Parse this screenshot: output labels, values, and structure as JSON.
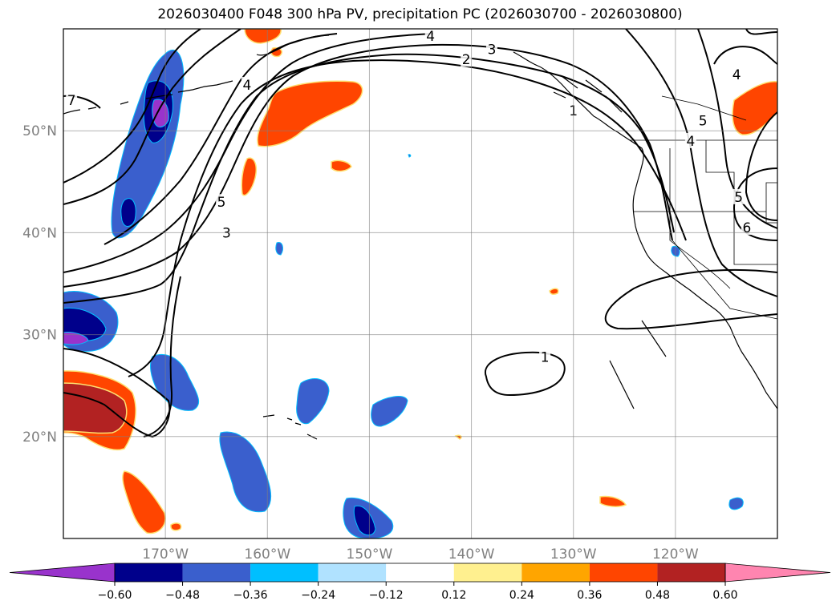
{
  "title": "2026030400 F048 300 hPa PV, precipitation PC (2026030700 - 2026030800)",
  "map": {
    "lat_labels": [
      "50°N",
      "40°N",
      "30°N",
      "20°N"
    ],
    "lat_values": [
      50,
      40,
      30,
      20
    ],
    "lon_labels": [
      "170°W",
      "160°W",
      "150°W",
      "140°W",
      "130°W",
      "120°W"
    ],
    "lon_values": [
      -170,
      -160,
      -150,
      -140,
      -130,
      -120
    ],
    "extent": {
      "lon_min": -180,
      "lon_max": -110,
      "lat_min": 10,
      "lat_max": 60
    },
    "gridlines": true,
    "contour_labels": [
      {
        "text": "4",
        "lon": -162.0,
        "lat": 54.5
      },
      {
        "text": "5",
        "lon": -164.5,
        "lat": 43.0
      },
      {
        "text": "3",
        "lon": -164.0,
        "lat": 40.0
      },
      {
        "text": "4",
        "lon": -144.0,
        "lat": 59.3
      },
      {
        "text": "3",
        "lon": -138.0,
        "lat": 58.0
      },
      {
        "text": "2",
        "lon": -140.5,
        "lat": 57.0
      },
      {
        "text": "1",
        "lon": -130.0,
        "lat": 52.0
      },
      {
        "text": "7",
        "lon": -179.2,
        "lat": 53.0
      },
      {
        "text": "4",
        "lon": -114.0,
        "lat": 55.5
      },
      {
        "text": "5",
        "lon": -117.3,
        "lat": 51.0
      },
      {
        "text": "4",
        "lon": -118.5,
        "lat": 49.0
      },
      {
        "text": "5",
        "lon": -113.8,
        "lat": 43.5
      },
      {
        "text": "6",
        "lon": -113.0,
        "lat": 40.5
      },
      {
        "text": "1",
        "lon": -132.8,
        "lat": 27.8
      }
    ]
  },
  "colorbar": {
    "levels": [
      "-0.60",
      "-0.48",
      "-0.36",
      "-0.24",
      "-0.12",
      "0.12",
      "0.24",
      "0.36",
      "0.48",
      "0.60"
    ],
    "colors": [
      "#9933cc",
      "#00008b",
      "#3a5fcd",
      "#00bfff",
      "#b0e2ff",
      "#ffffff",
      "#fff08f",
      "#ffa500",
      "#ff4500",
      "#b22222",
      "#ff85b0"
    ],
    "extend": "both"
  }
}
